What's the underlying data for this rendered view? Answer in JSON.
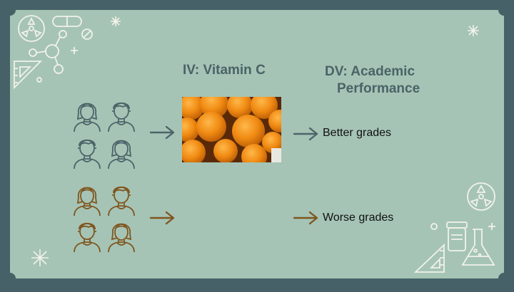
{
  "slide": {
    "iv_heading": "IV: Vitamin C",
    "dv_heading_line1": "DV: Academic",
    "dv_heading_line2": "Performance",
    "result_top": "Better grades",
    "result_bottom": "Worse grades"
  },
  "colors": {
    "frame": "#466268",
    "background": "#a5c4b5",
    "heading_text": "#4a6367",
    "group_treated": "#4b6469",
    "group_control": "#7f5620",
    "decor_line": "#f2f2ea"
  },
  "icons": {
    "top_left_decor": "science-molecule-icons",
    "top_right_decor": "sparkle-icon",
    "bottom_left_decor": "sparkle-icon",
    "bottom_right_decor": "lab-equipment-icons",
    "group_top": "people-group-icon",
    "group_bottom": "people-group-icon",
    "arrows": "arrow-right-icon",
    "food_photo": "oranges-photo"
  }
}
